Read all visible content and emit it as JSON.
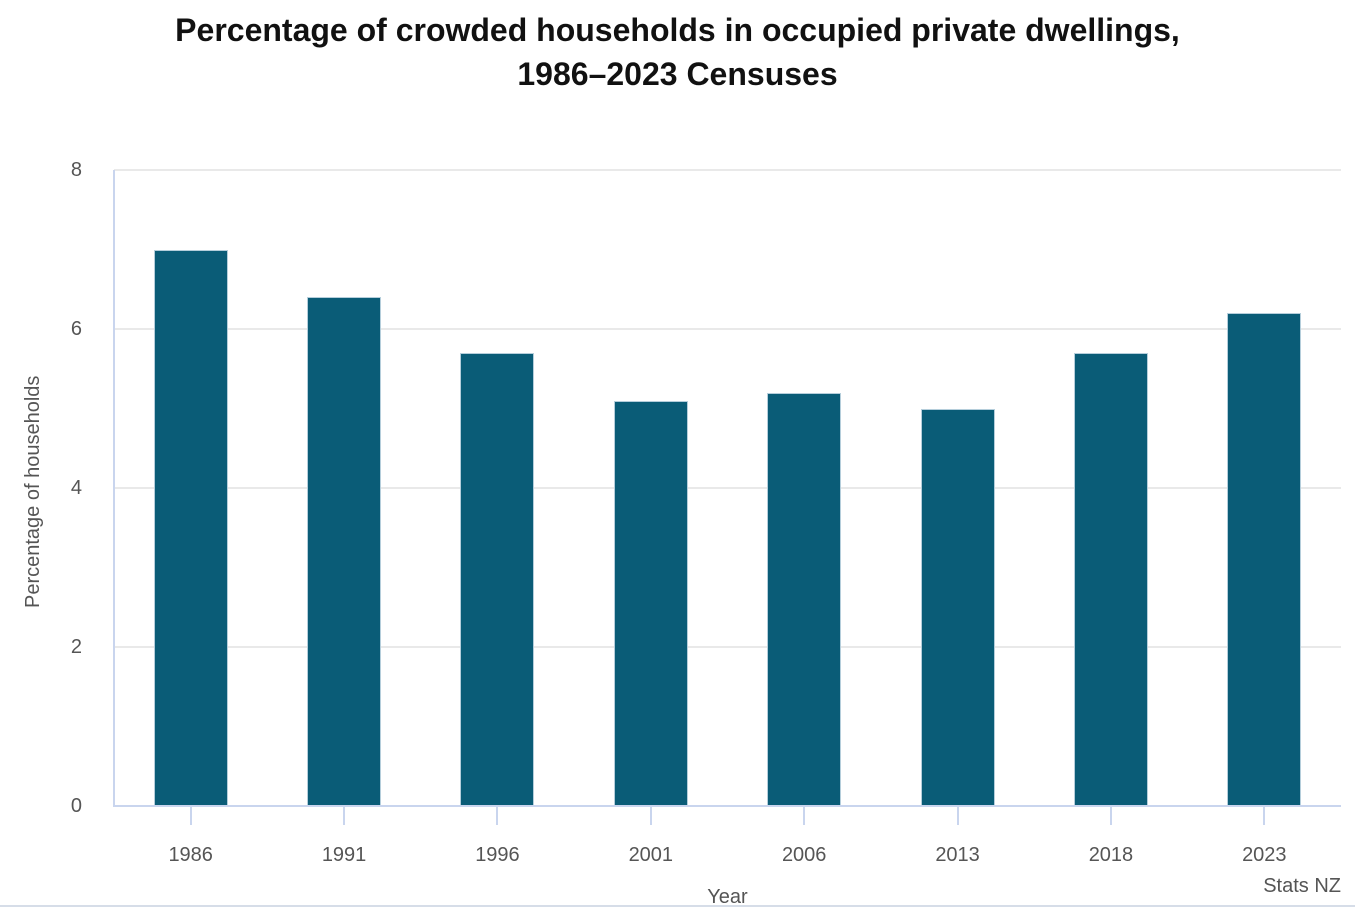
{
  "title": {
    "line1": "Percentage of crowded households in occupied private dwellings,",
    "line2": "1986–2023 Censuses"
  },
  "chart_data": {
    "type": "bar",
    "title": "Percentage of crowded households in occupied private dwellings, 1986–2023 Censuses",
    "categories": [
      "1986",
      "1991",
      "1996",
      "2001",
      "2006",
      "2013",
      "2018",
      "2023"
    ],
    "values": [
      7.0,
      6.4,
      5.7,
      5.1,
      5.2,
      5.0,
      5.7,
      6.2
    ],
    "xlabel": "Year",
    "ylabel": "Percentage of households",
    "ylim": [
      0,
      8
    ],
    "yticks": [
      0,
      2,
      4,
      6,
      8
    ],
    "grid": true,
    "legend_position": "none"
  },
  "footer": {
    "source_label": "Stats NZ"
  },
  "colors": {
    "bar": "#0a5c77",
    "gridline": "#e9e9e9",
    "axis_line": "#c9d5ee",
    "label_text": "#555555",
    "title_text": "#111111",
    "divider": "#d6dde8"
  }
}
